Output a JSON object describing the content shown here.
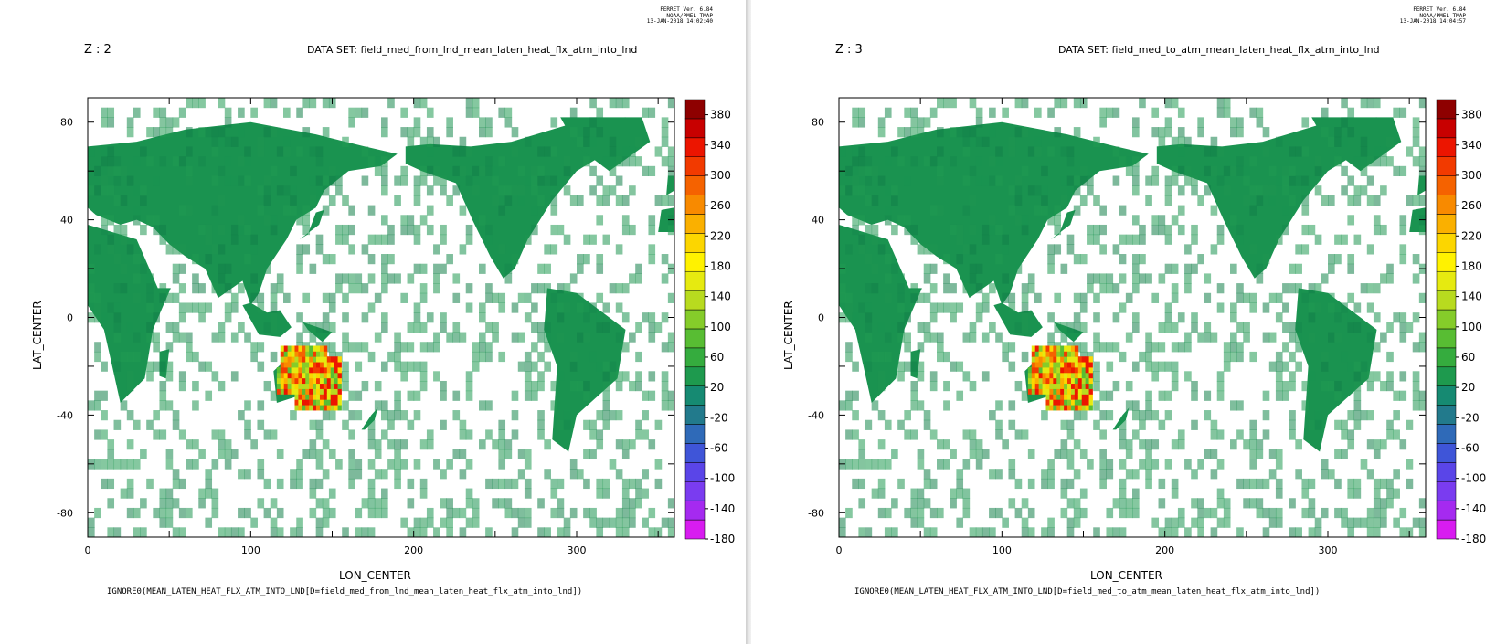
{
  "panels": [
    {
      "ferret_line1": "FERRET Ver. 6.84",
      "ferret_line2": "NOAA/PMEL TMAP",
      "ferret_line3": "13-JAN-2018 14:02:40",
      "z_label": "Z : 2",
      "dataset_label": "DATA SET: field_med_from_lnd_mean_laten_heat_flx_atm_into_lnd",
      "footer": "IGNORE0(MEAN_LATEN_HEAT_FLX_ATM_INTO_LND[D=field_med_from_lnd_mean_laten_heat_flx_atm_into_lnd])"
    },
    {
      "ferret_line1": "FERRET Ver. 6.84",
      "ferret_line2": "NOAA/PMEL TMAP",
      "ferret_line3": "13-JAN-2018 14:04:57",
      "z_label": "Z : 3",
      "dataset_label": "DATA SET: field_med_to_atm_mean_laten_heat_flx_atm_into_lnd",
      "footer": "IGNORE0(MEAN_LATEN_HEAT_FLX_ATM_INTO_LND[D=field_med_to_atm_mean_laten_heat_flx_atm_into_lnd])"
    }
  ],
  "chart_data": [
    {
      "type": "heatmap",
      "title": "DATA SET: field_med_from_lnd_mean_laten_heat_flx_atm_into_lnd",
      "xlabel": "LON_CENTER",
      "ylabel": "LAT_CENTER",
      "xlim": [
        0,
        360
      ],
      "ylim": [
        -90,
        90
      ],
      "x_ticks": [
        0,
        100,
        200,
        300
      ],
      "y_ticks": [
        80,
        40,
        0,
        -40,
        -80
      ],
      "colorbar_ticks": [
        380,
        340,
        300,
        260,
        220,
        180,
        140,
        100,
        60,
        20,
        -20,
        -60,
        -100,
        -140,
        -180
      ],
      "colorbar_range": [
        -180,
        400
      ],
      "land_value": 10,
      "highlight_region": "Australia",
      "highlight_values": [
        120,
        240
      ]
    },
    {
      "type": "heatmap",
      "title": "DATA SET: field_med_to_atm_mean_laten_heat_flx_atm_into_lnd",
      "xlabel": "LON_CENTER",
      "ylabel": "LAT_CENTER",
      "xlim": [
        0,
        360
      ],
      "ylim": [
        -90,
        90
      ],
      "x_ticks": [
        0,
        100,
        200,
        300
      ],
      "y_ticks": [
        80,
        40,
        0,
        -40,
        -80
      ],
      "colorbar_ticks": [
        380,
        340,
        300,
        260,
        220,
        180,
        140,
        100,
        60,
        20,
        -20,
        -60,
        -100,
        -140,
        -180
      ],
      "colorbar_range": [
        -180,
        400
      ],
      "land_value": 10,
      "highlight_region": "Australia",
      "highlight_values": [
        120,
        240
      ]
    }
  ],
  "palette": [
    "#d81cf0",
    "#a52af0",
    "#7a3cf0",
    "#5a45e8",
    "#3f55d8",
    "#2f6ab8",
    "#227a8c",
    "#168a72",
    "#1e9a4e",
    "#35ac3e",
    "#58bd33",
    "#85cc2a",
    "#b8db1f",
    "#e6ea10",
    "#fff200",
    "#fcd600",
    "#fab000",
    "#f88a00",
    "#f56200",
    "#f23a00",
    "#ec1500",
    "#c80000",
    "#8e0000"
  ]
}
